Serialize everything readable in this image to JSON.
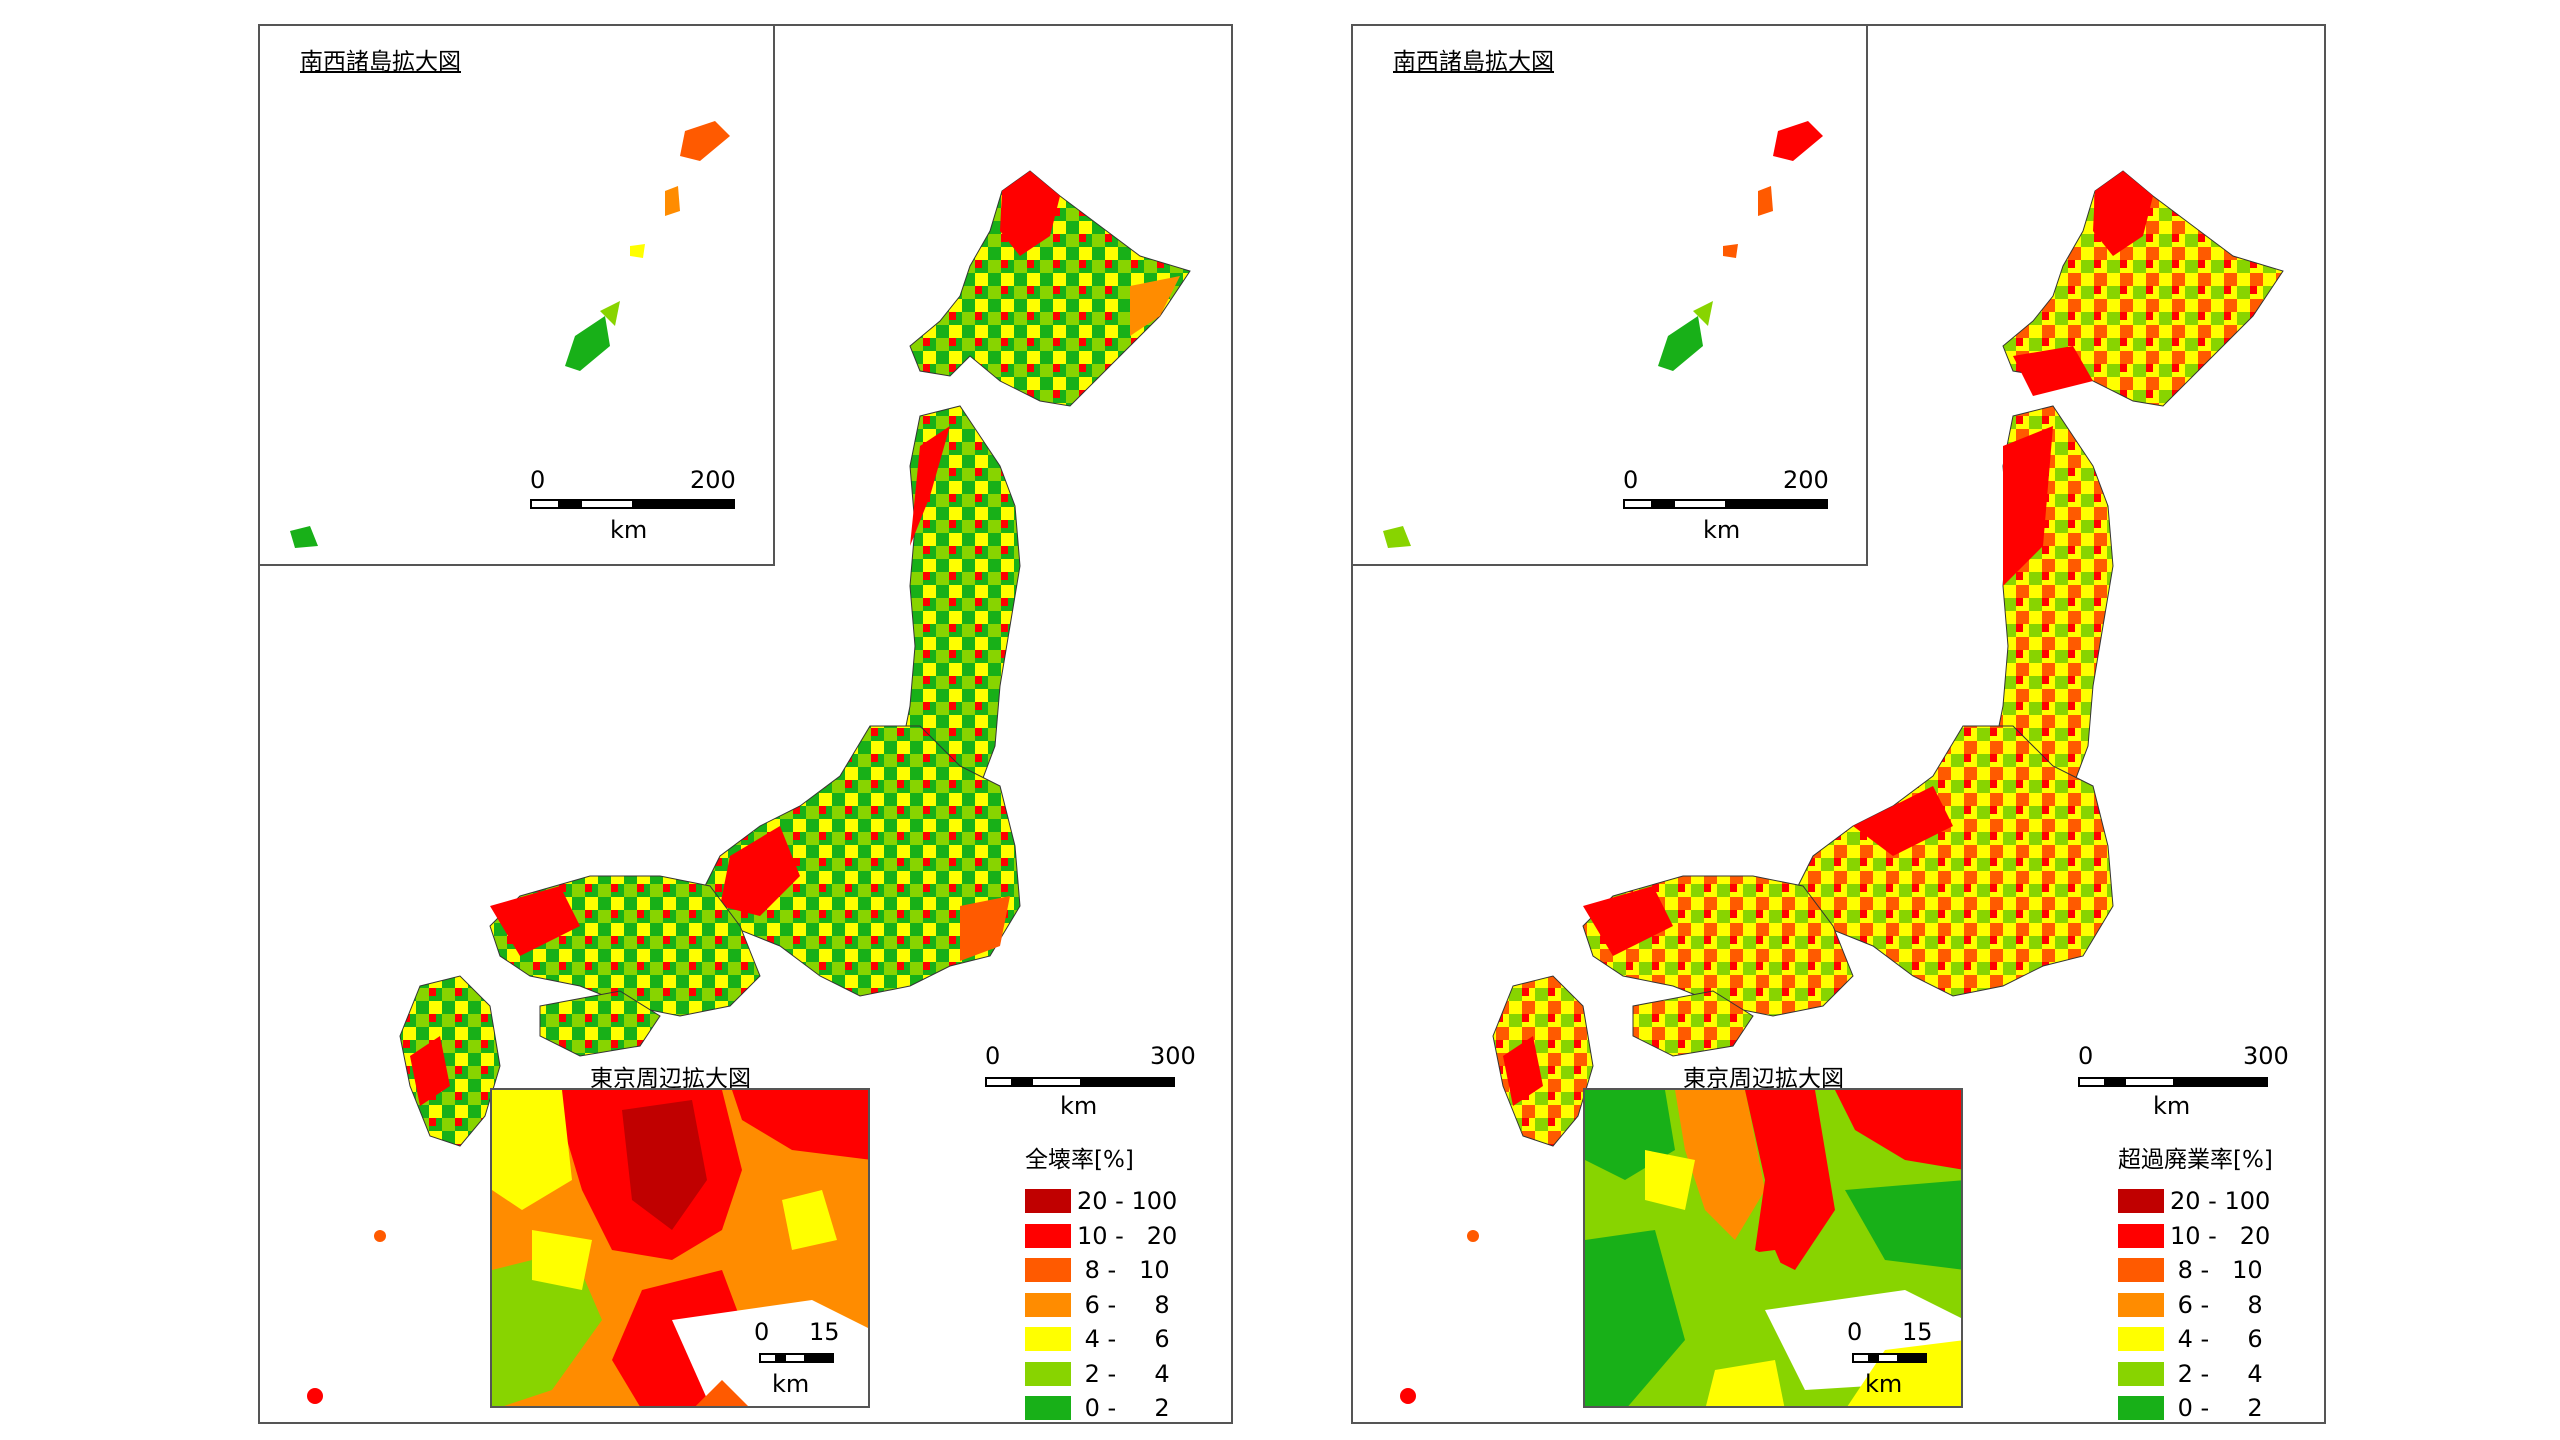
{
  "panels": [
    {
      "id": "left",
      "ryukyu_title": "南西諸島拡大図",
      "ryukyu_scale": {
        "zero": "0",
        "max": "200",
        "unit": "km"
      },
      "main_scale": {
        "zero": "0",
        "max": "300",
        "unit": "km"
      },
      "tokyo_title": "東京周辺拡大図",
      "tokyo_scale": {
        "zero": "0",
        "max": "15",
        "unit": "km"
      },
      "legend": {
        "title": "全壊率[%]",
        "items": [
          {
            "label": "20 - 100",
            "color": "#c00000"
          },
          {
            "label": "10 -   20",
            "color": "#ff0000"
          },
          {
            "label": " 8 -   10",
            "color": "#ff5a00"
          },
          {
            "label": " 6 -     8",
            "color": "#ff8c00"
          },
          {
            "label": " 4 -     6",
            "color": "#ffff00"
          },
          {
            "label": " 2 -     4",
            "color": "#88d400"
          },
          {
            "label": " 0 -     2",
            "color": "#18b018"
          }
        ]
      }
    },
    {
      "id": "right",
      "ryukyu_title": "南西諸島拡大図",
      "ryukyu_scale": {
        "zero": "0",
        "max": "200",
        "unit": "km"
      },
      "main_scale": {
        "zero": "0",
        "max": "300",
        "unit": "km"
      },
      "tokyo_title": "東京周辺拡大図",
      "tokyo_scale": {
        "zero": "0",
        "max": "15",
        "unit": "km"
      },
      "legend": {
        "title": "超過廃業率[%]",
        "items": [
          {
            "label": "20 - 100",
            "color": "#c00000"
          },
          {
            "label": "10 -   20",
            "color": "#ff0000"
          },
          {
            "label": " 8 -   10",
            "color": "#ff5a00"
          },
          {
            "label": " 6 -     8",
            "color": "#ff8c00"
          },
          {
            "label": " 4 -     6",
            "color": "#ffff00"
          },
          {
            "label": " 2 -     4",
            "color": "#88d400"
          },
          {
            "label": " 0 -     2",
            "color": "#18b018"
          }
        ]
      }
    }
  ]
}
